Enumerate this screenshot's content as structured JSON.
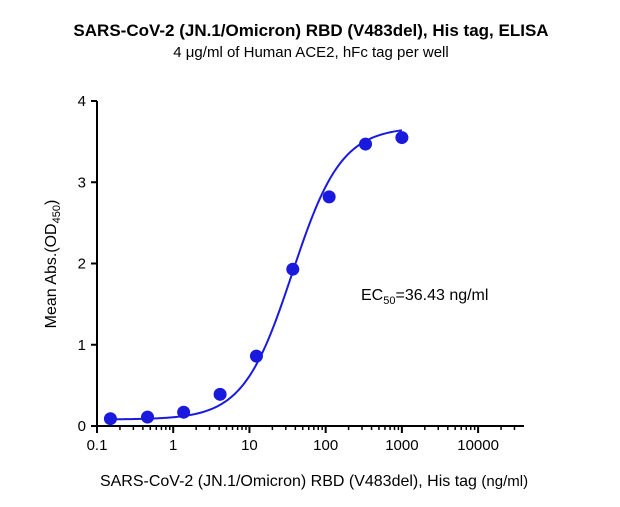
{
  "chart_data": {
    "type": "scatter",
    "title": "SARS-CoV-2 (JN.1/Omicron) RBD (V483del), His tag, ELISA",
    "subtitle": "4 μg/ml of Human ACE2, hFc tag per well",
    "xlabel_main": "SARS-CoV-2 (JN.1/Omicron) RBD (V483del), His tag",
    "xlabel_unit": "(ng/ml)",
    "ylabel_main": "Mean Abs.(OD",
    "ylabel_sub": "450",
    "ylabel_end": ")",
    "x_scale": "log",
    "xlim": [
      0.1,
      40000
    ],
    "ylim": [
      0,
      4
    ],
    "x_ticks": [
      {
        "value": 0.1,
        "label": "0.1"
      },
      {
        "value": 1,
        "label": "1"
      },
      {
        "value": 10,
        "label": "10"
      },
      {
        "value": 100,
        "label": "100"
      },
      {
        "value": 1000,
        "label": "1000"
      },
      {
        "value": 10000,
        "label": "10000"
      }
    ],
    "y_ticks": [
      {
        "value": 0,
        "label": "0"
      },
      {
        "value": 1,
        "label": "1"
      },
      {
        "value": 2,
        "label": "2"
      },
      {
        "value": 3,
        "label": "3"
      },
      {
        "value": 4,
        "label": "4"
      }
    ],
    "points": [
      {
        "x": 0.15,
        "y": 0.09
      },
      {
        "x": 0.46,
        "y": 0.11
      },
      {
        "x": 1.37,
        "y": 0.17
      },
      {
        "x": 4.12,
        "y": 0.39
      },
      {
        "x": 12.35,
        "y": 0.86
      },
      {
        "x": 37.04,
        "y": 1.93
      },
      {
        "x": 111.1,
        "y": 2.82
      },
      {
        "x": 333.3,
        "y": 3.47
      },
      {
        "x": 1000,
        "y": 3.55
      }
    ],
    "fit": {
      "bottom": 0.08,
      "top": 3.68,
      "ec50": 36.43,
      "hill": 1.35,
      "x_min": 0.15,
      "x_max": 1000
    },
    "annotation": {
      "prefix": "EC",
      "sub": "50",
      "suffix": "=36.43 ng/ml"
    },
    "colors": {
      "series": "#1a1adf",
      "axis": "#000000"
    },
    "grid": false
  }
}
